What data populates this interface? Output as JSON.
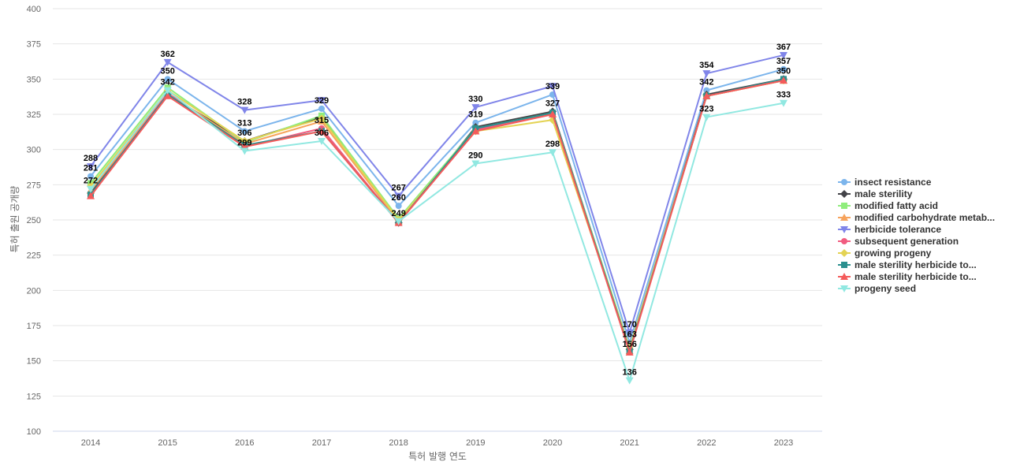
{
  "chart_data": {
    "type": "line",
    "xlabel": "특허 발행 연도",
    "ylabel": "특허 출원 공개량",
    "ylim": [
      100,
      400
    ],
    "yticks": [
      100,
      125,
      150,
      175,
      200,
      225,
      250,
      275,
      300,
      325,
      350,
      375,
      400
    ],
    "grid": true,
    "legend_position": "right",
    "categories": [
      "2014",
      "2015",
      "2016",
      "2017",
      "2018",
      "2019",
      "2020",
      "2021",
      "2022",
      "2023"
    ],
    "series": [
      {
        "name": "insect resistance",
        "color": "#7cb5ec",
        "marker": "circle",
        "values": [
          281,
          350,
          313,
          329,
          260,
          319,
          339,
          163,
          342,
          357
        ]
      },
      {
        "name": "male sterility",
        "color": "#434348",
        "marker": "diamond",
        "values": [
          269,
          339,
          306,
          323,
          248,
          316,
          327,
          158,
          339,
          350
        ]
      },
      {
        "name": "modified fatty acid",
        "color": "#90ed7d",
        "marker": "square",
        "values": [
          276,
          344,
          305,
          324,
          251,
          315,
          326,
          159,
          338,
          349
        ]
      },
      {
        "name": "modified carbohydrate metab...",
        "color": "#f7a35c",
        "marker": "triangle",
        "values": [
          271,
          340,
          304,
          320,
          249,
          314,
          325,
          157,
          338,
          349
        ]
      },
      {
        "name": "herbicide tolerance",
        "color": "#8085e9",
        "marker": "triangle-down",
        "values": [
          288,
          362,
          328,
          335,
          267,
          330,
          345,
          170,
          354,
          367
        ]
      },
      {
        "name": "subsequent generation",
        "color": "#f15c80",
        "marker": "circle",
        "values": [
          268,
          340,
          302,
          315,
          248,
          314,
          325,
          157,
          338,
          349
        ]
      },
      {
        "name": "growing progeny",
        "color": "#e4d354",
        "marker": "diamond",
        "values": [
          274,
          342,
          306,
          322,
          250,
          313,
          321,
          159,
          338,
          349
        ]
      },
      {
        "name": "male sterility herbicide to...",
        "color": "#2b908f",
        "marker": "square",
        "values": [
          268,
          339,
          303,
          313,
          248,
          315,
          326,
          157,
          338,
          350
        ]
      },
      {
        "name": "male sterility herbicide to...",
        "color": "#f45b5b",
        "marker": "triangle",
        "values": [
          267,
          338,
          302,
          313,
          248,
          313,
          325,
          156,
          338,
          349
        ]
      },
      {
        "name": "progeny seed",
        "color": "#91e8e1",
        "marker": "triangle-down",
        "values": [
          272,
          342,
          299,
          306,
          249,
          290,
          298,
          136,
          323,
          333
        ]
      }
    ],
    "data_labels": [
      {
        "x": "2014",
        "values": [
          288,
          281,
          272
        ]
      },
      {
        "x": "2015",
        "values": [
          362,
          350,
          342
        ]
      },
      {
        "x": "2016",
        "values": [
          328,
          313,
          306,
          299
        ]
      },
      {
        "x": "2017",
        "values": [
          329,
          315,
          306
        ]
      },
      {
        "x": "2018",
        "values": [
          267,
          260,
          249
        ]
      },
      {
        "x": "2019",
        "values": [
          330,
          319,
          290
        ]
      },
      {
        "x": "2020",
        "values": [
          339,
          327,
          298
        ]
      },
      {
        "x": "2021",
        "values": [
          170,
          163,
          156,
          136
        ]
      },
      {
        "x": "2022",
        "values": [
          354,
          342,
          323
        ]
      },
      {
        "x": "2023",
        "values": [
          367,
          357,
          350,
          333
        ]
      }
    ]
  }
}
